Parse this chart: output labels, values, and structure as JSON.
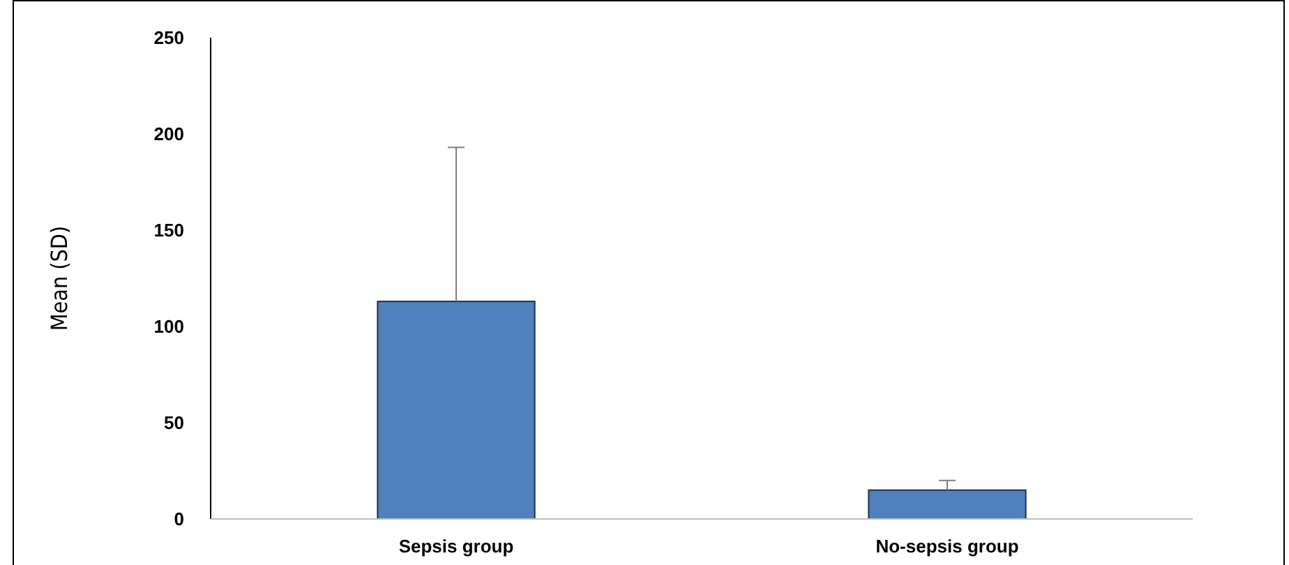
{
  "chart_data": {
    "type": "bar",
    "ylabel": "Mean (SD)",
    "categories": [
      "Sepsis group",
      "No-sepsis group"
    ],
    "values": [
      113,
      15
    ],
    "color": "#4f81bd",
    "errors": [
      [
        113,
        193
      ],
      [
        15,
        20
      ]
    ],
    "ylim": [
      0,
      250
    ],
    "yticks": [
      0,
      50,
      100,
      150,
      200,
      250
    ],
    "grid": false
  }
}
